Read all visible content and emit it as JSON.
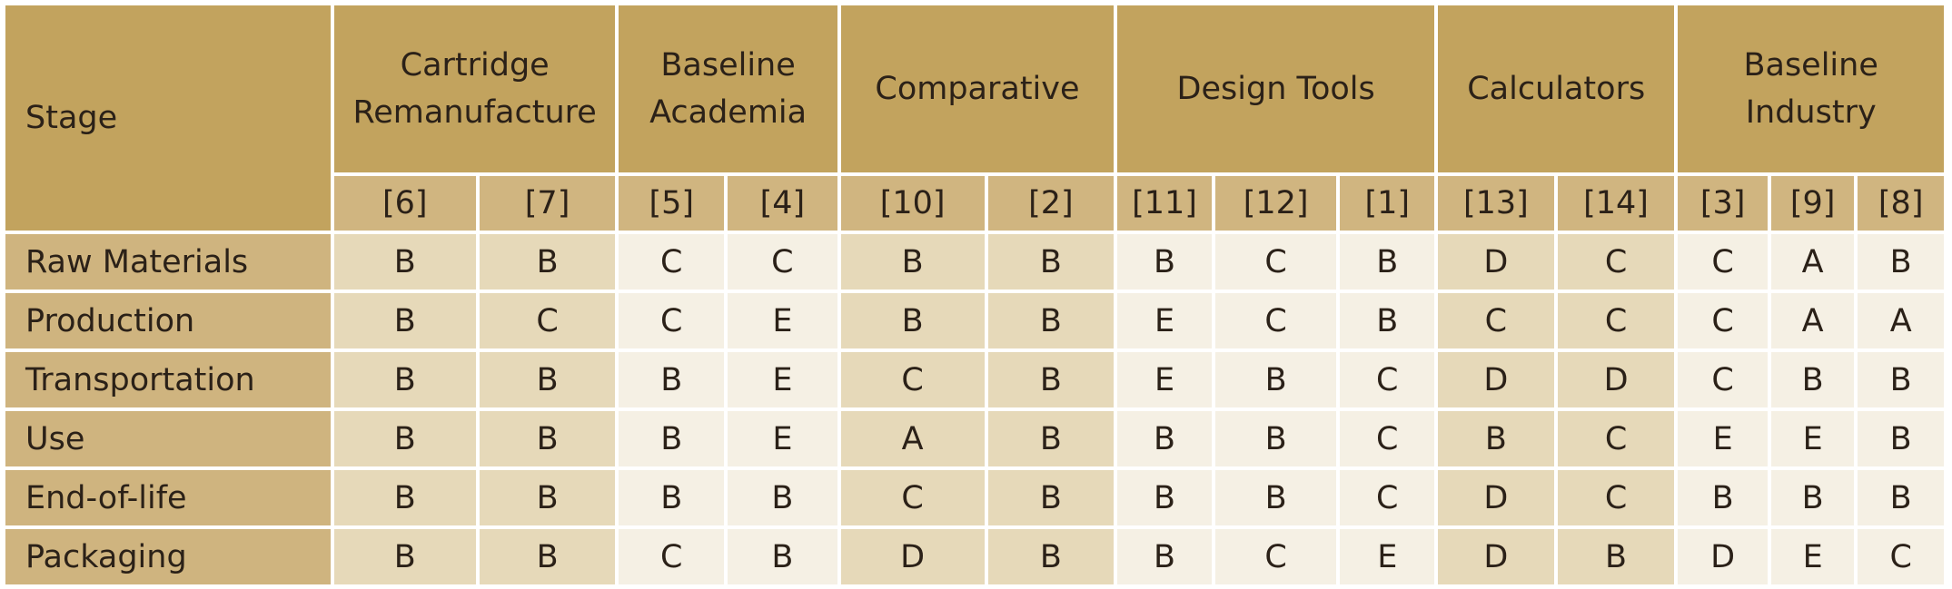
{
  "header": {
    "stage_label": "Stage",
    "groups": [
      {
        "label": "Cartridge Remanufacture",
        "refs": [
          "[6]",
          "[7]"
        ],
        "shade": "dark"
      },
      {
        "label": "Baseline Academia",
        "refs": [
          "[5]",
          "[4]"
        ],
        "shade": "light"
      },
      {
        "label": "Comparative",
        "refs": [
          "[10]",
          "[2]"
        ],
        "shade": "dark"
      },
      {
        "label": "Design Tools",
        "refs": [
          "[11]",
          "[12]",
          "[1]"
        ],
        "shade": "light"
      },
      {
        "label": "Calculators",
        "refs": [
          "[13]",
          "[14]"
        ],
        "shade": "dark"
      },
      {
        "label": "Baseline Industry",
        "refs": [
          "[3]",
          "[9]",
          "[8]"
        ],
        "shade": "light"
      }
    ]
  },
  "rows": [
    {
      "stage": "Raw Materials",
      "values": [
        "B",
        "B",
        "C",
        "C",
        "B",
        "B",
        "B",
        "C",
        "B",
        "D",
        "C",
        "C",
        "A",
        "B"
      ]
    },
    {
      "stage": "Production",
      "values": [
        "B",
        "C",
        "C",
        "E",
        "B",
        "B",
        "E",
        "C",
        "B",
        "C",
        "C",
        "C",
        "A",
        "A"
      ]
    },
    {
      "stage": "Transportation",
      "values": [
        "B",
        "B",
        "B",
        "E",
        "C",
        "B",
        "E",
        "B",
        "C",
        "D",
        "D",
        "C",
        "B",
        "B"
      ]
    },
    {
      "stage": "Use",
      "values": [
        "B",
        "B",
        "B",
        "E",
        "A",
        "B",
        "B",
        "B",
        "C",
        "B",
        "C",
        "E",
        "E",
        "B"
      ]
    },
    {
      "stage": "End-of-life",
      "values": [
        "B",
        "B",
        "B",
        "B",
        "C",
        "B",
        "B",
        "B",
        "C",
        "D",
        "C",
        "B",
        "B",
        "B"
      ]
    },
    {
      "stage": "Packaging",
      "values": [
        "B",
        "B",
        "C",
        "B",
        "D",
        "B",
        "B",
        "C",
        "E",
        "D",
        "B",
        "D",
        "E",
        "C"
      ]
    }
  ],
  "colors": {
    "header": "#c2a35e",
    "subheader": "#d0b580",
    "stage_cell": "#cfb47f",
    "dark_cell": "#e6d9b9",
    "light_cell": "#f5f0e4",
    "text": "#2b2118"
  }
}
